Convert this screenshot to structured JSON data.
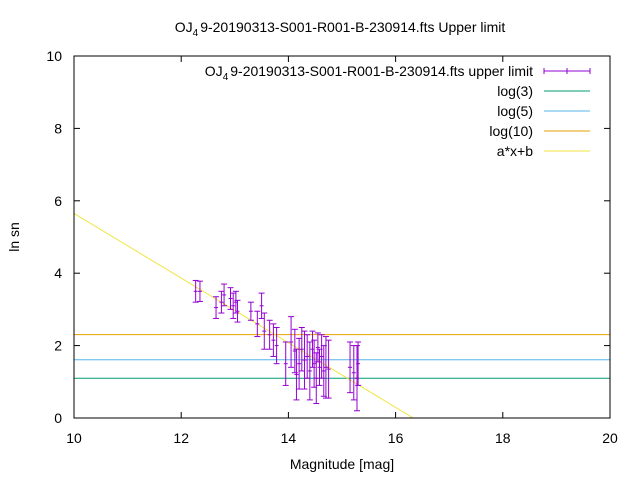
{
  "chart_data": {
    "type": "scatter",
    "title_main": "OJ",
    "title_sub": "4",
    "title_rest": "9-20190313-S001-R001-B-230914.fts Upper limit",
    "xlabel": "Magnitude [mag]",
    "ylabel": "ln sn",
    "xlim": [
      10,
      20
    ],
    "ylim": [
      0,
      10
    ],
    "xticks": [
      10,
      12,
      14,
      16,
      18,
      20
    ],
    "yticks": [
      0,
      2,
      4,
      6,
      8,
      10
    ],
    "grid": false,
    "legend_placement": "top-right",
    "series": [
      {
        "name_main": "OJ",
        "name_sub": "4",
        "name_rest": "9-20190313-S001-R001-B-230914.fts upper limit",
        "kind": "errorbar",
        "color": "#9400d3",
        "points": [
          {
            "x": 12.27,
            "y": 3.5,
            "err": 0.3
          },
          {
            "x": 12.35,
            "y": 3.5,
            "err": 0.28
          },
          {
            "x": 12.65,
            "y": 3.05,
            "err": 0.3
          },
          {
            "x": 12.75,
            "y": 3.2,
            "err": 0.3
          },
          {
            "x": 12.8,
            "y": 3.4,
            "err": 0.3
          },
          {
            "x": 12.92,
            "y": 3.3,
            "err": 0.3
          },
          {
            "x": 12.97,
            "y": 3.1,
            "err": 0.35
          },
          {
            "x": 13.02,
            "y": 3.2,
            "err": 0.3
          },
          {
            "x": 13.05,
            "y": 2.95,
            "err": 0.3
          },
          {
            "x": 13.3,
            "y": 2.95,
            "err": 0.25
          },
          {
            "x": 13.42,
            "y": 2.6,
            "err": 0.35
          },
          {
            "x": 13.5,
            "y": 3.1,
            "err": 0.35
          },
          {
            "x": 13.55,
            "y": 2.4,
            "err": 0.5
          },
          {
            "x": 13.65,
            "y": 2.3,
            "err": 0.4
          },
          {
            "x": 13.72,
            "y": 2.15,
            "err": 0.45
          },
          {
            "x": 13.78,
            "y": 2.0,
            "err": 0.5
          },
          {
            "x": 13.95,
            "y": 1.5,
            "err": 0.6
          },
          {
            "x": 14.05,
            "y": 2.1,
            "err": 0.7
          },
          {
            "x": 14.12,
            "y": 1.85,
            "err": 0.6
          },
          {
            "x": 14.15,
            "y": 1.2,
            "err": 0.7
          },
          {
            "x": 14.2,
            "y": 1.5,
            "err": 0.7
          },
          {
            "x": 14.25,
            "y": 1.9,
            "err": 0.6
          },
          {
            "x": 14.3,
            "y": 1.6,
            "err": 0.8
          },
          {
            "x": 14.35,
            "y": 1.7,
            "err": 0.6
          },
          {
            "x": 14.4,
            "y": 1.3,
            "err": 0.8
          },
          {
            "x": 14.45,
            "y": 1.9,
            "err": 0.5
          },
          {
            "x": 14.48,
            "y": 1.5,
            "err": 0.65
          },
          {
            "x": 14.52,
            "y": 1.1,
            "err": 0.7
          },
          {
            "x": 14.55,
            "y": 1.95,
            "err": 0.4
          },
          {
            "x": 14.58,
            "y": 1.4,
            "err": 0.5
          },
          {
            "x": 14.62,
            "y": 1.7,
            "err": 0.6
          },
          {
            "x": 14.66,
            "y": 1.3,
            "err": 0.7
          },
          {
            "x": 14.7,
            "y": 1.4,
            "err": 0.85
          },
          {
            "x": 14.75,
            "y": 1.35,
            "err": 0.8
          },
          {
            "x": 15.15,
            "y": 1.4,
            "err": 0.7
          },
          {
            "x": 15.22,
            "y": 1.25,
            "err": 0.75
          },
          {
            "x": 15.28,
            "y": 1.1,
            "err": 0.9
          },
          {
            "x": 15.3,
            "y": 1.5,
            "err": 0.6
          }
        ]
      },
      {
        "name": "log(3)",
        "kind": "hline",
        "y": 1.0986,
        "color": "#009e73"
      },
      {
        "name": "log(5)",
        "kind": "hline",
        "y": 1.6094,
        "color": "#56b4e9"
      },
      {
        "name": "log(10)",
        "kind": "hline",
        "y": 2.3026,
        "color": "#e69f00"
      },
      {
        "name": "a*x+b",
        "kind": "line",
        "x": [
          10,
          16.33
        ],
        "y": [
          5.65,
          0
        ],
        "color": "#f0e442"
      }
    ]
  }
}
